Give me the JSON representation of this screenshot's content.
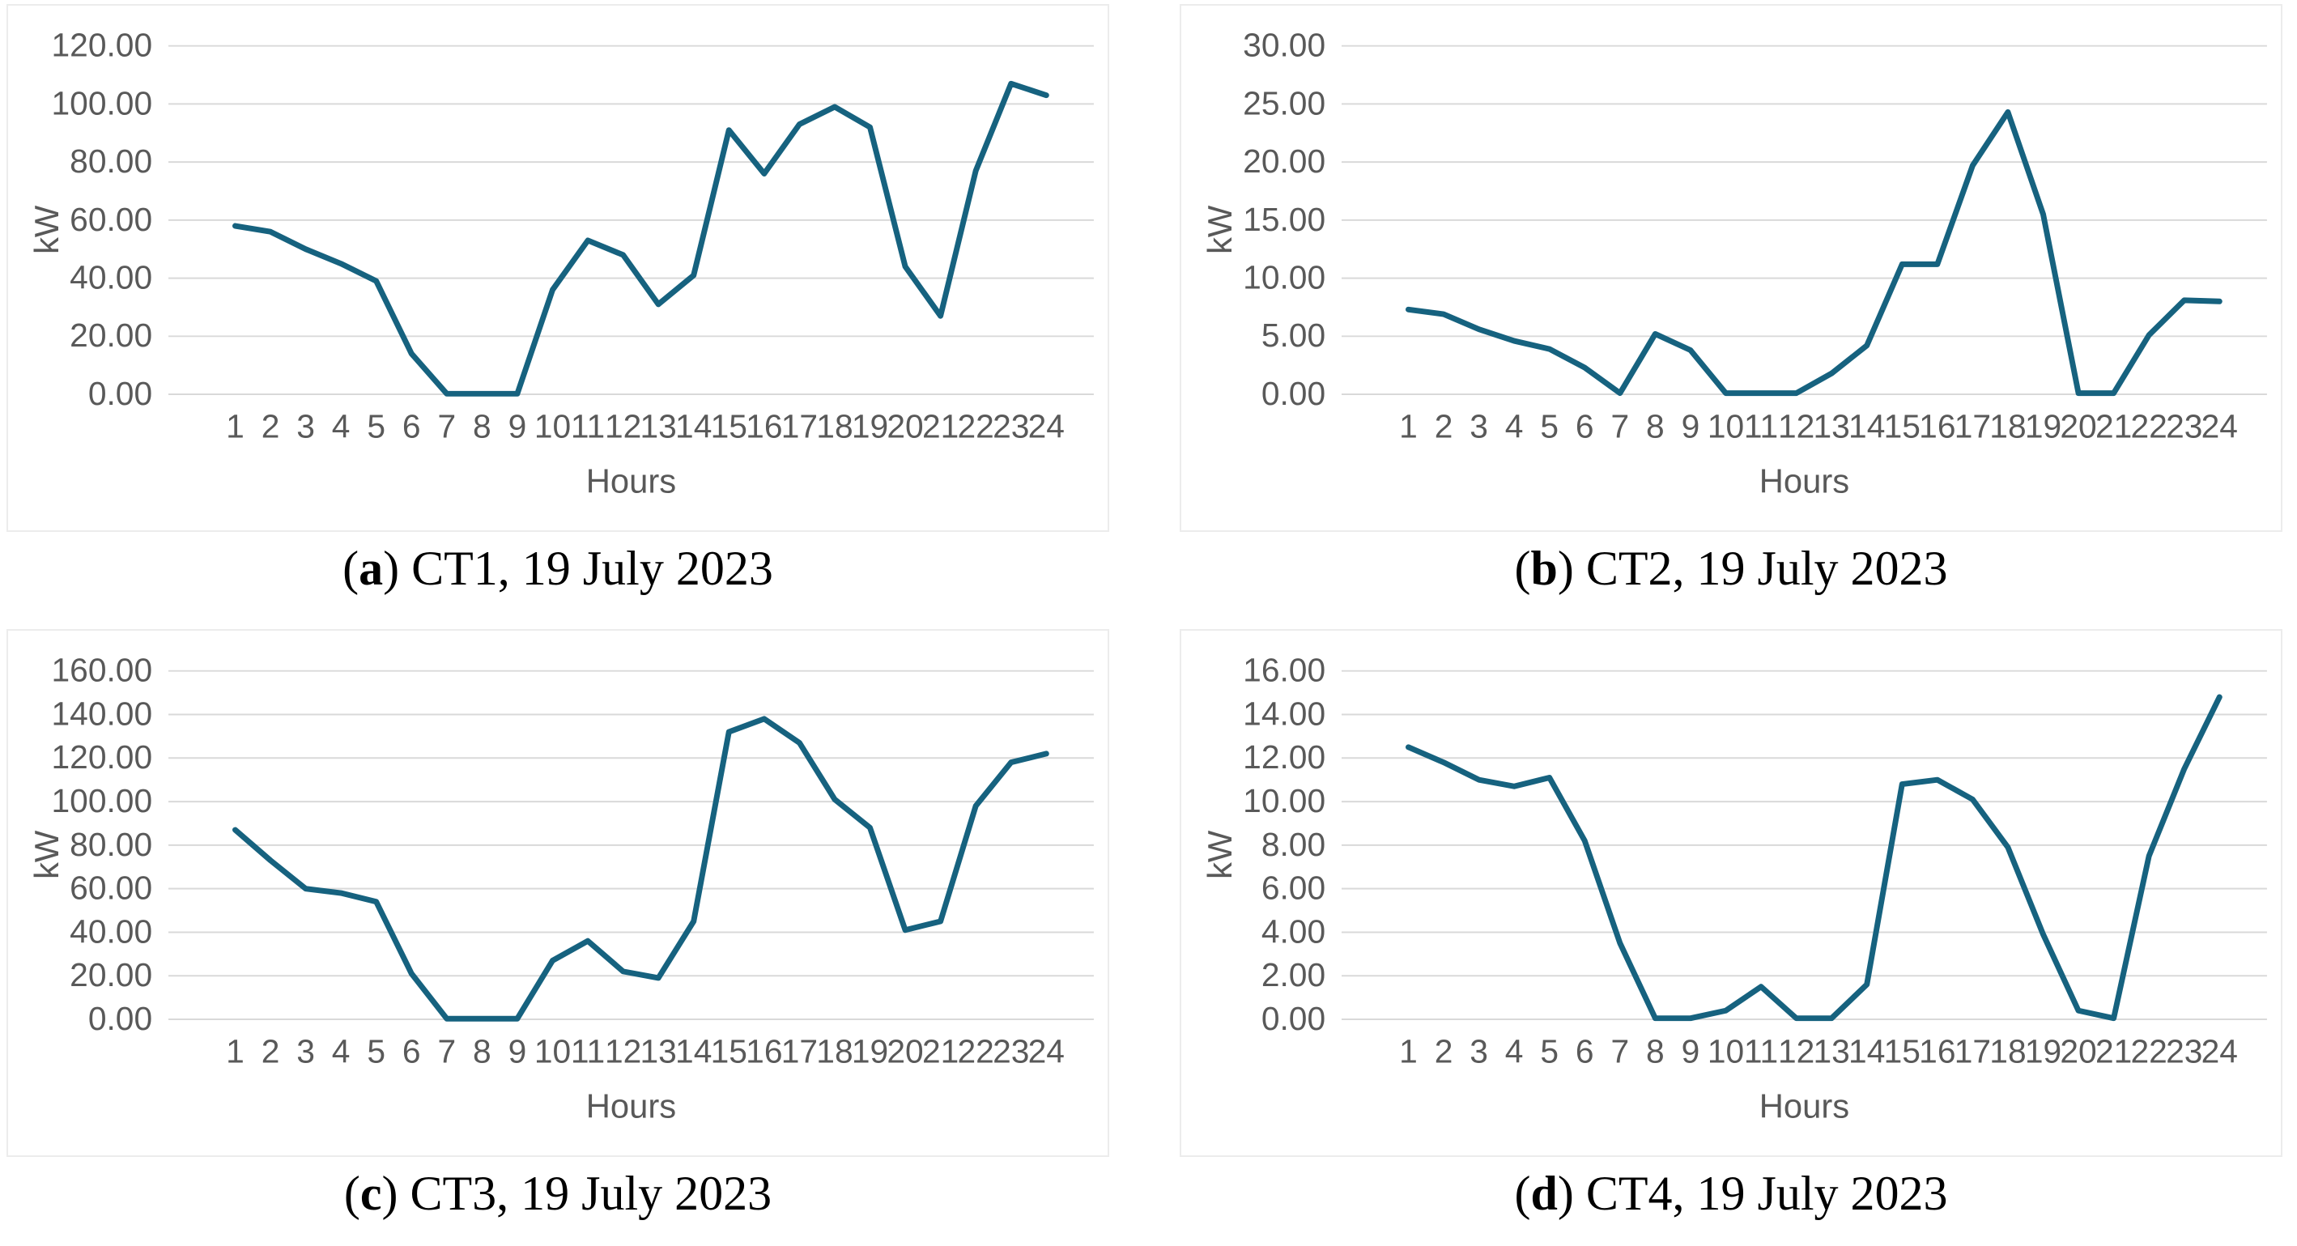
{
  "style": {
    "line_color": "#16627F",
    "grid_color": "#D9D9D9",
    "axis_text_color": "#595959",
    "panel_border_color": "#ECECEC"
  },
  "figure": {
    "open_paren": "(",
    "close_paren": ") ",
    "panels": [
      {
        "id": "a",
        "letter": "a",
        "caption": "CT1, 19 July 2023"
      },
      {
        "id": "b",
        "letter": "b",
        "caption": "CT2, 19 July 2023"
      },
      {
        "id": "c",
        "letter": "c",
        "caption": "CT3, 19 July 2023"
      },
      {
        "id": "d",
        "letter": "d",
        "caption": "CT4, 19 July 2023"
      }
    ]
  },
  "chart_data": [
    {
      "type": "line",
      "panel": "a",
      "title": "",
      "xlabel": "Hours",
      "ylabel": "kW",
      "ylim": [
        0,
        120
      ],
      "ytick": 20,
      "grid": true,
      "legend": false,
      "categories": [
        "1",
        "2",
        "3",
        "4",
        "5",
        "6",
        "7",
        "8",
        "9",
        "10",
        "11",
        "12",
        "13",
        "14",
        "15",
        "16",
        "17",
        "18",
        "19",
        "20",
        "21",
        "22",
        "23",
        "24"
      ],
      "values": [
        58,
        56,
        50,
        45,
        39,
        14,
        0.2,
        0.2,
        0.2,
        36,
        53,
        48,
        31,
        41,
        91,
        76,
        93,
        99,
        92,
        44,
        27,
        77,
        107,
        103
      ]
    },
    {
      "type": "line",
      "panel": "b",
      "title": "",
      "xlabel": "Hours",
      "ylabel": "kW",
      "ylim": [
        0,
        30
      ],
      "ytick": 5,
      "grid": true,
      "legend": false,
      "categories": [
        "1",
        "2",
        "3",
        "4",
        "5",
        "6",
        "7",
        "8",
        "9",
        "10",
        "11",
        "12",
        "13",
        "14",
        "15",
        "16",
        "17",
        "18",
        "19",
        "20",
        "21",
        "22",
        "23",
        "24"
      ],
      "values": [
        7.3,
        6.9,
        5.6,
        4.6,
        3.9,
        2.3,
        0.1,
        5.2,
        3.8,
        0.1,
        0.1,
        0.1,
        1.8,
        4.2,
        11.2,
        11.2,
        19.7,
        24.3,
        15.5,
        0.1,
        0.1,
        5.1,
        8.1,
        8.0
      ]
    },
    {
      "type": "line",
      "panel": "c",
      "title": "",
      "xlabel": "Hours",
      "ylabel": "kW",
      "ylim": [
        0,
        160
      ],
      "ytick": 20,
      "grid": true,
      "legend": false,
      "categories": [
        "1",
        "2",
        "3",
        "4",
        "5",
        "6",
        "7",
        "8",
        "9",
        "10",
        "11",
        "12",
        "13",
        "14",
        "15",
        "16",
        "17",
        "18",
        "19",
        "20",
        "21",
        "22",
        "23",
        "24"
      ],
      "values": [
        87,
        73,
        60,
        58,
        54,
        21,
        0.3,
        0.3,
        0.3,
        27,
        36,
        22,
        19,
        45,
        132,
        138,
        127,
        101,
        88,
        41,
        45,
        98,
        118,
        122
      ]
    },
    {
      "type": "line",
      "panel": "d",
      "title": "",
      "xlabel": "Hours",
      "ylabel": "kW",
      "ylim": [
        0,
        16
      ],
      "ytick": 2,
      "grid": true,
      "legend": false,
      "categories": [
        "1",
        "2",
        "3",
        "4",
        "5",
        "6",
        "7",
        "8",
        "9",
        "10",
        "11",
        "12",
        "13",
        "14",
        "15",
        "16",
        "17",
        "18",
        "19",
        "20",
        "21",
        "22",
        "23",
        "24"
      ],
      "values": [
        12.5,
        11.8,
        11.0,
        10.7,
        11.1,
        8.2,
        3.5,
        0.05,
        0.05,
        0.4,
        1.5,
        0.05,
        0.05,
        1.6,
        10.8,
        11.0,
        10.1,
        7.9,
        3.9,
        0.4,
        0.05,
        7.5,
        11.5,
        14.8
      ]
    }
  ]
}
